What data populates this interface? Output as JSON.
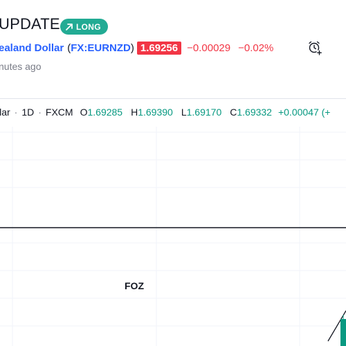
{
  "header": {
    "title": "UPDATE",
    "badge": "LONG",
    "symbol_name": "ealand Dollar",
    "symbol_open": "(",
    "symbol_ticker": "FX:EURNZD",
    "symbol_close": ")",
    "price": "1.69256",
    "change": "−0.00029",
    "change_pct": "−0.02%",
    "time_ago": "nutes ago"
  },
  "legend": {
    "symbol": "llar",
    "interval": "1D",
    "source": "FXCM",
    "o_label": "O",
    "o_value": "1.69285",
    "h_label": "H",
    "h_value": "1.69390",
    "l_label": "L",
    "l_value": "1.69170",
    "c_label": "C",
    "c_value": "1.69332",
    "change": "+0.00047 (+"
  },
  "annotations": {
    "foz": "FOZ"
  },
  "colors": {
    "badge": "#22ab94",
    "price_box": "#f23645",
    "negative": "#f23645",
    "positive": "#089981",
    "link": "#2962ff",
    "grid": "#f0f3fa",
    "horizontal_line": "#131722",
    "candle_up": "#089981"
  },
  "icons": {
    "badge_icon": "arrow-up-right-icon",
    "alert_icon": "alarm-clock-plus-icon"
  }
}
